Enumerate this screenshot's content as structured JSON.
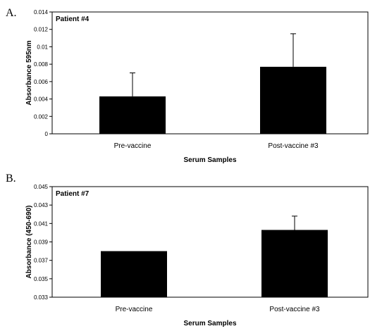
{
  "chart_data": [
    {
      "panel": "A.",
      "type": "bar",
      "title": "Patient #4",
      "xlabel": "Serum Samples",
      "ylabel": "Absorbance 595nm",
      "categories": [
        "Pre-vaccine",
        "Post-vaccine #3"
      ],
      "values": [
        0.0043,
        0.0077
      ],
      "error_plus": [
        0.0027,
        0.0038
      ],
      "ylim": [
        0,
        0.014
      ],
      "yticks": [
        "0",
        "0.002",
        "0.004",
        "0.006",
        "0.008",
        "0.01",
        "0.012",
        "0.014"
      ],
      "ytick_values": [
        0,
        0.002,
        0.004,
        0.006,
        0.008,
        0.01,
        0.012,
        0.014
      ],
      "grid": false,
      "bar_color": "#000000"
    },
    {
      "panel": "B.",
      "type": "bar",
      "title": "Patient #7",
      "xlabel": "Serum Samples",
      "ylabel": "Absorbance (450-690)",
      "categories": [
        "Pre-vaccine",
        "Post-vaccine #3"
      ],
      "values": [
        0.038,
        0.0403
      ],
      "error_plus": [
        0,
        0.0015
      ],
      "ylim": [
        0.033,
        0.045
      ],
      "yticks": [
        "0.033",
        "0.035",
        "0.037",
        "0.039",
        "0.041",
        "0.043",
        "0.045"
      ],
      "ytick_values": [
        0.033,
        0.035,
        0.037,
        0.039,
        0.041,
        0.043,
        0.045
      ],
      "grid": false,
      "bar_color": "#000000"
    }
  ]
}
